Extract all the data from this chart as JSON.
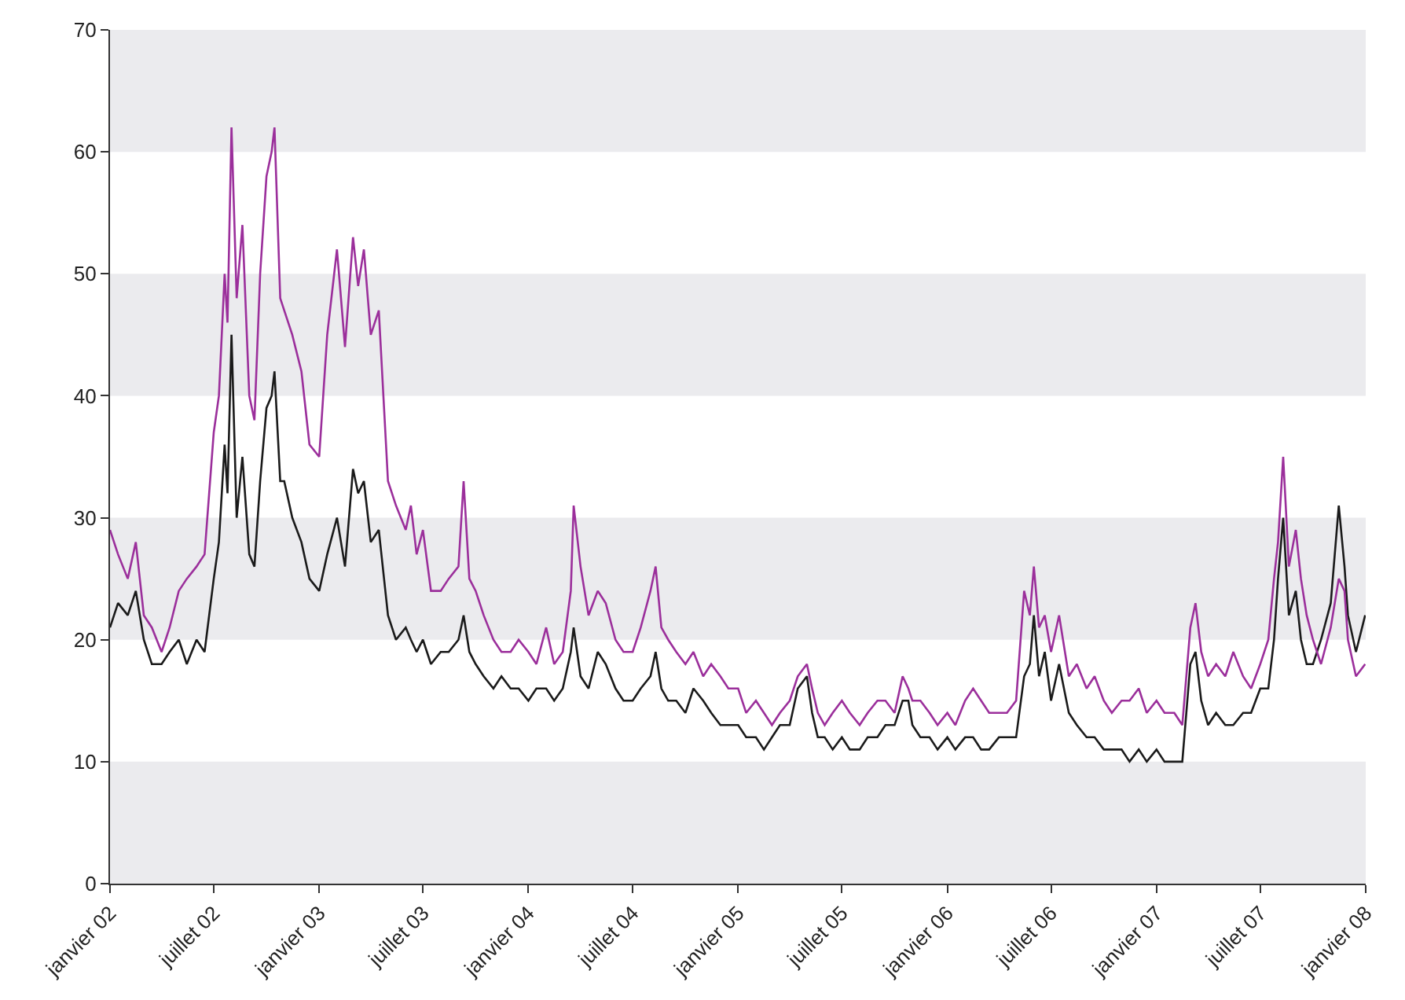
{
  "chart_data": {
    "type": "line",
    "x": [
      "2002-01-01",
      "2002-01-15",
      "2002-02-01",
      "2002-02-15",
      "2002-03-01",
      "2002-03-15",
      "2002-04-01",
      "2002-04-15",
      "2002-05-01",
      "2002-05-15",
      "2002-06-01",
      "2002-06-15",
      "2002-07-01",
      "2002-07-10",
      "2002-07-20",
      "2002-07-25",
      "2002-08-01",
      "2002-08-10",
      "2002-08-20",
      "2002-09-01",
      "2002-09-10",
      "2002-09-20",
      "2002-10-01",
      "2002-10-10",
      "2002-10-15",
      "2002-10-25",
      "2002-11-01",
      "2002-11-15",
      "2002-12-01",
      "2002-12-15",
      "2003-01-01",
      "2003-01-15",
      "2003-02-01",
      "2003-02-15",
      "2003-03-01",
      "2003-03-10",
      "2003-03-20",
      "2003-04-01",
      "2003-04-15",
      "2003-05-01",
      "2003-05-15",
      "2003-06-01",
      "2003-06-10",
      "2003-06-20",
      "2003-07-01",
      "2003-07-15",
      "2003-08-01",
      "2003-08-15",
      "2003-09-01",
      "2003-09-10",
      "2003-09-20",
      "2003-10-01",
      "2003-10-15",
      "2003-11-01",
      "2003-11-15",
      "2003-12-01",
      "2003-12-15",
      "2004-01-01",
      "2004-01-15",
      "2004-02-01",
      "2004-02-15",
      "2004-03-01",
      "2004-03-15",
      "2004-03-20",
      "2004-04-01",
      "2004-04-15",
      "2004-05-01",
      "2004-05-15",
      "2004-06-01",
      "2004-06-15",
      "2004-07-01",
      "2004-07-15",
      "2004-08-01",
      "2004-08-10",
      "2004-08-20",
      "2004-09-01",
      "2004-09-15",
      "2004-10-01",
      "2004-10-15",
      "2004-11-01",
      "2004-11-15",
      "2004-12-01",
      "2004-12-15",
      "2005-01-01",
      "2005-01-15",
      "2005-02-01",
      "2005-02-15",
      "2005-03-01",
      "2005-03-15",
      "2005-04-01",
      "2005-04-15",
      "2005-05-01",
      "2005-05-10",
      "2005-05-20",
      "2005-06-01",
      "2005-06-15",
      "2005-07-01",
      "2005-07-15",
      "2005-08-01",
      "2005-08-15",
      "2005-09-01",
      "2005-09-15",
      "2005-10-01",
      "2005-10-15",
      "2005-10-25",
      "2005-11-01",
      "2005-11-15",
      "2005-12-01",
      "2005-12-15",
      "2006-01-01",
      "2006-01-15",
      "2006-02-01",
      "2006-02-15",
      "2006-03-01",
      "2006-03-15",
      "2006-04-01",
      "2006-04-15",
      "2006-05-01",
      "2006-05-15",
      "2006-05-25",
      "2006-06-01",
      "2006-06-10",
      "2006-06-20",
      "2006-07-01",
      "2006-07-15",
      "2006-08-01",
      "2006-08-15",
      "2006-09-01",
      "2006-09-15",
      "2006-10-01",
      "2006-10-15",
      "2006-11-01",
      "2006-11-15",
      "2006-12-01",
      "2006-12-15",
      "2007-01-01",
      "2007-01-15",
      "2007-02-01",
      "2007-02-15",
      "2007-03-01",
      "2007-03-10",
      "2007-03-20",
      "2007-04-01",
      "2007-04-15",
      "2007-05-01",
      "2007-05-15",
      "2007-06-01",
      "2007-06-15",
      "2007-07-01",
      "2007-07-15",
      "2007-07-25",
      "2007-08-01",
      "2007-08-10",
      "2007-08-20",
      "2007-09-01",
      "2007-09-10",
      "2007-09-20",
      "2007-10-01",
      "2007-10-15",
      "2007-11-01",
      "2007-11-15",
      "2007-11-25",
      "2007-12-01",
      "2007-12-15",
      "2007-12-31"
    ],
    "series": [
      {
        "color": "#1a1a1a",
        "values": [
          21,
          23,
          22,
          24,
          20,
          18,
          18,
          19,
          20,
          18,
          20,
          19,
          25,
          28,
          36,
          32,
          45,
          30,
          35,
          27,
          26,
          33,
          39,
          40,
          42,
          33,
          33,
          30,
          28,
          25,
          24,
          27,
          30,
          26,
          34,
          32,
          33,
          28,
          29,
          22,
          20,
          21,
          20,
          19,
          20,
          18,
          19,
          19,
          20,
          22,
          19,
          18,
          17,
          16,
          17,
          16,
          16,
          15,
          16,
          16,
          15,
          16,
          19,
          21,
          17,
          16,
          19,
          18,
          16,
          15,
          15,
          16,
          17,
          19,
          16,
          15,
          15,
          14,
          16,
          15,
          14,
          13,
          13,
          13,
          12,
          12,
          11,
          12,
          13,
          13,
          16,
          17,
          14,
          12,
          12,
          11,
          12,
          11,
          11,
          12,
          12,
          13,
          13,
          15,
          15,
          13,
          12,
          12,
          11,
          12,
          11,
          12,
          12,
          11,
          11,
          12,
          12,
          12,
          17,
          18,
          22,
          17,
          19,
          15,
          18,
          14,
          13,
          12,
          12,
          11,
          11,
          11,
          10,
          11,
          10,
          11,
          10,
          10,
          10,
          18,
          19,
          15,
          13,
          14,
          13,
          13,
          14,
          14,
          16,
          16,
          20,
          25,
          30,
          22,
          24,
          20,
          18,
          18,
          20,
          23,
          31,
          26,
          22,
          19,
          22
        ]
      },
      {
        "color": "#9b2f9b",
        "values": [
          29,
          27,
          25,
          28,
          22,
          21,
          19,
          21,
          24,
          25,
          26,
          27,
          37,
          40,
          50,
          46,
          62,
          48,
          54,
          40,
          38,
          50,
          58,
          60,
          62,
          48,
          47,
          45,
          42,
          36,
          35,
          45,
          52,
          44,
          53,
          49,
          52,
          45,
          47,
          33,
          31,
          29,
          31,
          27,
          29,
          24,
          24,
          25,
          26,
          33,
          25,
          24,
          22,
          20,
          19,
          19,
          20,
          19,
          18,
          21,
          18,
          19,
          24,
          31,
          26,
          22,
          24,
          23,
          20,
          19,
          19,
          21,
          24,
          26,
          21,
          20,
          19,
          18,
          19,
          17,
          18,
          17,
          16,
          16,
          14,
          15,
          14,
          13,
          14,
          15,
          17,
          18,
          16,
          14,
          13,
          14,
          15,
          14,
          13,
          14,
          15,
          15,
          14,
          17,
          16,
          15,
          15,
          14,
          13,
          14,
          13,
          15,
          16,
          15,
          14,
          14,
          14,
          15,
          24,
          22,
          26,
          21,
          22,
          19,
          22,
          17,
          18,
          16,
          17,
          15,
          14,
          15,
          15,
          16,
          14,
          15,
          14,
          14,
          13,
          21,
          23,
          19,
          17,
          18,
          17,
          19,
          17,
          16,
          18,
          20,
          25,
          28,
          35,
          26,
          29,
          25,
          22,
          20,
          18,
          21,
          25,
          24,
          20,
          17,
          18
        ]
      }
    ],
    "xlim": [
      "2002-01-01",
      "2008-01-01"
    ],
    "xticks": [
      {
        "value": "2002-01-01",
        "label": "janvier 02"
      },
      {
        "value": "2002-07-01",
        "label": "juillet 02"
      },
      {
        "value": "2003-01-01",
        "label": "janvier 03"
      },
      {
        "value": "2003-07-01",
        "label": "juillet 03"
      },
      {
        "value": "2004-01-01",
        "label": "janvier 04"
      },
      {
        "value": "2004-07-01",
        "label": "juillet 04"
      },
      {
        "value": "2005-01-01",
        "label": "janvier 05"
      },
      {
        "value": "2005-07-01",
        "label": "juillet 05"
      },
      {
        "value": "2006-01-01",
        "label": "janvier 06"
      },
      {
        "value": "2006-07-01",
        "label": "juillet 06"
      },
      {
        "value": "2007-01-01",
        "label": "janvier 07"
      },
      {
        "value": "2007-07-01",
        "label": "juillet 07"
      },
      {
        "value": "2008-01-01",
        "label": "janvier 08"
      }
    ],
    "ylim": [
      0,
      70
    ],
    "yticks": [
      0,
      10,
      20,
      30,
      40,
      50,
      60,
      70
    ],
    "bands": [
      {
        "axis": "y",
        "from": 0,
        "to": 10,
        "color": "#ebebee"
      },
      {
        "axis": "y",
        "from": 20,
        "to": 30,
        "color": "#ebebee"
      },
      {
        "axis": "y",
        "from": 40,
        "to": 50,
        "color": "#ebebee"
      },
      {
        "axis": "y",
        "from": 60,
        "to": 70,
        "color": "#ebebee"
      }
    ],
    "grid": false,
    "marker": "none",
    "line_style": "solid"
  }
}
